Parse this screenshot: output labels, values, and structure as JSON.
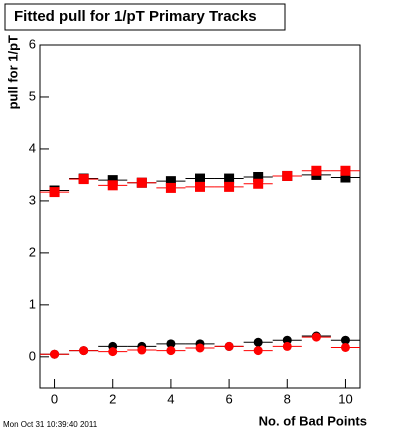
{
  "chart_data": {
    "type": "scatter",
    "title": "Fitted pull for 1/pT Primary Tracks",
    "x_label": "No. of Bad Points",
    "y_label": "pull for 1/pT",
    "footer": "Mon Oct 31 10:39:40 2011",
    "x": [
      0,
      1,
      2,
      3,
      4,
      5,
      6,
      7,
      8,
      9,
      10
    ],
    "xlim": [
      -0.5,
      10.5
    ],
    "xticks": [
      0,
      2,
      4,
      6,
      8,
      10
    ],
    "ylim": [
      -0.6,
      6
    ],
    "yticks": [
      0,
      1,
      2,
      3,
      4,
      5,
      6
    ],
    "series": [
      {
        "color": "#000000",
        "marker": "square",
        "xerr": 0.5,
        "values": [
          3.2,
          3.43,
          3.4,
          3.35,
          3.38,
          3.43,
          3.43,
          3.46,
          3.48,
          3.5,
          3.45
        ]
      },
      {
        "color": "#ff0000",
        "marker": "square",
        "xerr": 0.5,
        "values": [
          3.17,
          3.42,
          3.3,
          3.35,
          3.25,
          3.27,
          3.27,
          3.33,
          3.48,
          3.58,
          3.58
        ]
      },
      {
        "color": "#000000",
        "marker": "circle",
        "xerr": 0.5,
        "values": [
          0.05,
          0.12,
          0.2,
          0.2,
          0.25,
          0.25,
          0.2,
          0.28,
          0.32,
          0.4,
          0.32
        ]
      },
      {
        "color": "#ff0000",
        "marker": "circle",
        "xerr": 0.5,
        "values": [
          0.05,
          0.12,
          0.1,
          0.13,
          0.12,
          0.17,
          0.2,
          0.12,
          0.2,
          0.38,
          0.18
        ]
      }
    ]
  }
}
